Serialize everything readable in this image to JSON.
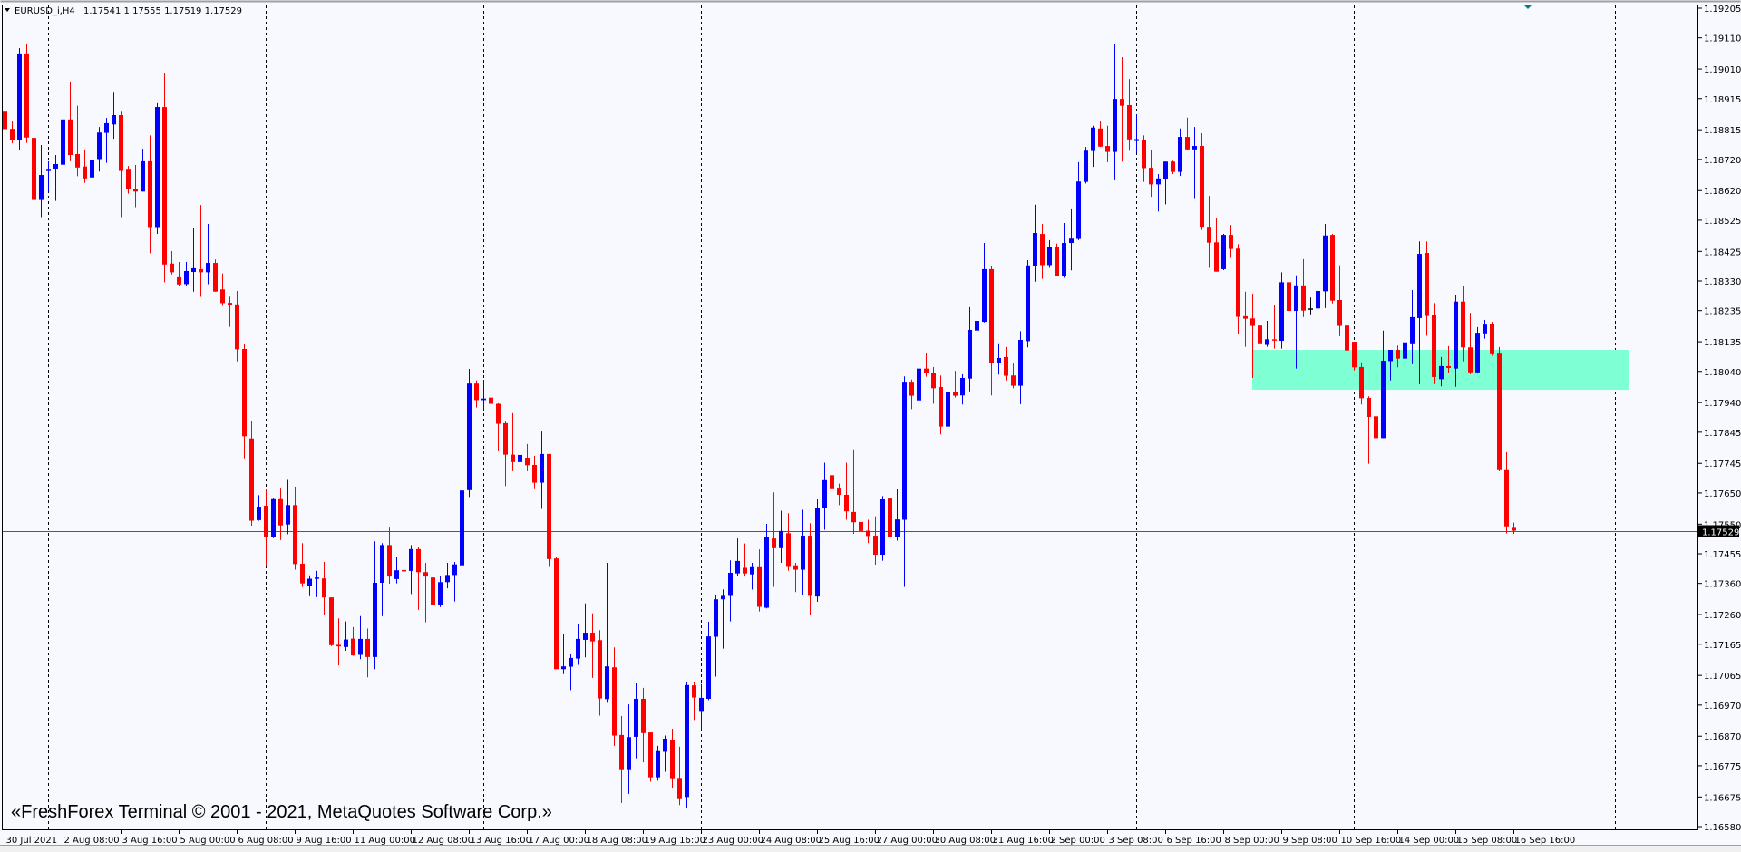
{
  "header": {
    "symbol_timeframe": "EURUSD_i,H4",
    "ohlc_text": "1.17541 1.17555 1.17519 1.17529"
  },
  "watermark": "«FreshForex Terminal © 2001 - 2021, MetaQuotes Software Corp.»",
  "colors": {
    "background": "#f8f8ff",
    "bull": "#0000ff",
    "bear": "#ff0000",
    "doji": "#000000",
    "current_price_line": "#008080",
    "zone": "#7fffd4",
    "separator": "#000000",
    "price_label_bg": "#000000",
    "price_label_text": "#ffffff"
  },
  "chart_data": {
    "type": "candlestick",
    "symbol": "EURUSD_i",
    "timeframe": "H4",
    "ylim": [
      1.1658,
      1.19205
    ],
    "current_price": "1.17529",
    "y_ticks": [
      "1.19205",
      "1.19110",
      "1.19010",
      "1.18915",
      "1.18815",
      "1.18720",
      "1.18620",
      "1.18525",
      "1.18425",
      "1.18330",
      "1.18235",
      "1.18135",
      "1.18040",
      "1.17940",
      "1.17845",
      "1.17745",
      "1.17650",
      "1.17550",
      "1.17455",
      "1.17360",
      "1.17260",
      "1.17165",
      "1.17065",
      "1.16970",
      "1.16870",
      "1.16775",
      "1.16675",
      "1.16580"
    ],
    "x_ticks": [
      "30 Jul 2021",
      "2 Aug 08:00",
      "3 Aug 16:00",
      "5 Aug 00:00",
      "6 Aug 08:00",
      "9 Aug 16:00",
      "11 Aug 00:00",
      "12 Aug 08:00",
      "13 Aug 16:00",
      "17 Aug 00:00",
      "18 Aug 08:00",
      "19 Aug 16:00",
      "23 Aug 00:00",
      "24 Aug 08:00",
      "25 Aug 16:00",
      "27 Aug 00:00",
      "30 Aug 08:00",
      "31 Aug 16:00",
      "2 Sep 00:00",
      "3 Sep 08:00",
      "6 Sep 16:00",
      "8 Sep 00:00",
      "9 Sep 08:00",
      "10 Sep 16:00",
      "14 Sep 00:00",
      "15 Sep 08:00",
      "16 Sep 16:00"
    ],
    "zone": {
      "price_high": 1.18109,
      "price_low": 1.17981
    },
    "ohlc_order": [
      "open",
      "high",
      "low",
      "close"
    ],
    "candles": [
      [
        1.18873,
        1.18944,
        1.18753,
        1.18817
      ],
      [
        1.18818,
        1.18844,
        1.18772,
        1.18782
      ],
      [
        1.18782,
        1.19077,
        1.18749,
        1.19057
      ],
      [
        1.19057,
        1.19089,
        1.18773,
        1.1879
      ],
      [
        1.18789,
        1.18865,
        1.18514,
        1.1859
      ],
      [
        1.1859,
        1.18766,
        1.18535,
        1.1867
      ],
      [
        1.18683,
        1.18714,
        1.18617,
        1.18687
      ],
      [
        1.18689,
        1.18734,
        1.18587,
        1.18705
      ],
      [
        1.18703,
        1.18885,
        1.18639,
        1.18848
      ],
      [
        1.18848,
        1.1897,
        1.18714,
        1.18734
      ],
      [
        1.18737,
        1.18892,
        1.18666,
        1.18694
      ],
      [
        1.18697,
        1.18752,
        1.18645,
        1.18659
      ],
      [
        1.18662,
        1.18786,
        1.18662,
        1.18719
      ],
      [
        1.18721,
        1.18824,
        1.18681,
        1.18806
      ],
      [
        1.18805,
        1.18853,
        1.18709,
        1.18836
      ],
      [
        1.18832,
        1.18934,
        1.18786,
        1.18862
      ],
      [
        1.18862,
        1.18873,
        1.18535,
        1.18683
      ],
      [
        1.18687,
        1.18699,
        1.1861,
        1.18625
      ],
      [
        1.18626,
        1.18702,
        1.18567,
        1.18617
      ],
      [
        1.18617,
        1.18754,
        1.18617,
        1.18714
      ],
      [
        1.18714,
        1.18797,
        1.18419,
        1.18503
      ],
      [
        1.18503,
        1.189,
        1.18481,
        1.18888
      ],
      [
        1.18888,
        1.18996,
        1.18326,
        1.18383
      ],
      [
        1.18386,
        1.18426,
        1.18351,
        1.18358
      ],
      [
        1.18342,
        1.18391,
        1.18314,
        1.18319
      ],
      [
        1.1832,
        1.18391,
        1.18314,
        1.18362
      ],
      [
        1.18359,
        1.18499,
        1.18296,
        1.18371
      ],
      [
        1.18368,
        1.18574,
        1.18279,
        1.18358
      ],
      [
        1.18358,
        1.18513,
        1.1832,
        1.18388
      ],
      [
        1.18388,
        1.18399,
        1.18296,
        1.18296
      ],
      [
        1.18303,
        1.18354,
        1.1825,
        1.18259
      ],
      [
        1.1826,
        1.1828,
        1.18183,
        1.18252
      ],
      [
        1.18255,
        1.18298,
        1.18072,
        1.18111
      ],
      [
        1.18112,
        1.18127,
        1.17761,
        1.17832
      ],
      [
        1.17825,
        1.17882,
        1.17545,
        1.17561
      ],
      [
        1.17563,
        1.17643,
        1.17561,
        1.17606
      ],
      [
        1.17609,
        1.17662,
        1.17415,
        1.17509
      ],
      [
        1.1751,
        1.17635,
        1.17505,
        1.17633
      ],
      [
        1.17633,
        1.17667,
        1.17499,
        1.17546
      ],
      [
        1.17549,
        1.17692,
        1.17518,
        1.17611
      ],
      [
        1.17611,
        1.1767,
        1.17404,
        1.17422
      ],
      [
        1.17423,
        1.17489,
        1.17348,
        1.1736
      ],
      [
        1.17352,
        1.17386,
        1.17319,
        1.17375
      ],
      [
        1.17375,
        1.174,
        1.17316,
        1.17379
      ],
      [
        1.17376,
        1.17429,
        1.17259,
        1.17315
      ],
      [
        1.17315,
        1.17315,
        1.17159,
        1.17162
      ],
      [
        1.17163,
        1.17248,
        1.17097,
        1.17158
      ],
      [
        1.17156,
        1.17238,
        1.17144,
        1.1718
      ],
      [
        1.17183,
        1.1722,
        1.17128,
        1.17129
      ],
      [
        1.17131,
        1.17255,
        1.17117,
        1.17182
      ],
      [
        1.17182,
        1.17215,
        1.17059,
        1.17124
      ],
      [
        1.17124,
        1.17495,
        1.17085,
        1.17362
      ],
      [
        1.17362,
        1.17489,
        1.17255,
        1.17483
      ],
      [
        1.17483,
        1.17542,
        1.17359,
        1.17382
      ],
      [
        1.17374,
        1.17446,
        1.1736,
        1.17402
      ],
      [
        1.17403,
        1.17459,
        1.17343,
        1.174
      ],
      [
        1.174,
        1.17483,
        1.17326,
        1.1747
      ],
      [
        1.1747,
        1.17477,
        1.17275,
        1.17396
      ],
      [
        1.17396,
        1.17426,
        1.17235,
        1.17382
      ],
      [
        1.17379,
        1.17426,
        1.17284,
        1.17291
      ],
      [
        1.17291,
        1.17384,
        1.17284,
        1.17364
      ],
      [
        1.17364,
        1.17426,
        1.17344,
        1.17387
      ],
      [
        1.17387,
        1.17429,
        1.17302,
        1.17421
      ],
      [
        1.17418,
        1.17692,
        1.17404,
        1.17658
      ],
      [
        1.17659,
        1.18048,
        1.17637,
        1.18001
      ],
      [
        1.18001,
        1.18011,
        1.17924,
        1.17948
      ],
      [
        1.17948,
        1.18013,
        1.17916,
        1.17953
      ],
      [
        1.17956,
        1.18007,
        1.17898,
        1.17936
      ],
      [
        1.17936,
        1.17938,
        1.17784,
        1.17872
      ],
      [
        1.17874,
        1.17879,
        1.17672,
        1.17773
      ],
      [
        1.17773,
        1.17906,
        1.1772,
        1.17749
      ],
      [
        1.17749,
        1.17795,
        1.17744,
        1.17772
      ],
      [
        1.17763,
        1.17807,
        1.1772,
        1.17739
      ],
      [
        1.1774,
        1.17769,
        1.17665,
        1.17683
      ],
      [
        1.17683,
        1.17847,
        1.17599,
        1.17775
      ],
      [
        1.17775,
        1.17775,
        1.17413,
        1.17438
      ],
      [
        1.1744,
        1.17446,
        1.17085,
        1.17085
      ],
      [
        1.17085,
        1.17197,
        1.17069,
        1.17094
      ],
      [
        1.17093,
        1.17133,
        1.17018,
        1.17121
      ],
      [
        1.17119,
        1.17231,
        1.17099,
        1.17182
      ],
      [
        1.17179,
        1.17296,
        1.17123,
        1.17202
      ],
      [
        1.17202,
        1.17264,
        1.17057,
        1.17174
      ],
      [
        1.17178,
        1.1721,
        1.16936,
        1.16991
      ],
      [
        1.16989,
        1.17426,
        1.16977,
        1.17094
      ],
      [
        1.17091,
        1.17155,
        1.16839,
        1.16872
      ],
      [
        1.16874,
        1.16935,
        1.16656,
        1.16764
      ],
      [
        1.16764,
        1.16972,
        1.16685,
        1.16867
      ],
      [
        1.16868,
        1.17042,
        1.16799,
        1.1699
      ],
      [
        1.1699,
        1.17025,
        1.16786,
        1.1688
      ],
      [
        1.16882,
        1.16882,
        1.16724,
        1.16738
      ],
      [
        1.16738,
        1.16839,
        1.16727,
        1.16822
      ],
      [
        1.1682,
        1.16872,
        1.16756,
        1.16862
      ],
      [
        1.16859,
        1.16894,
        1.16705,
        1.16735
      ],
      [
        1.16736,
        1.16836,
        1.16649,
        1.16671
      ],
      [
        1.16675,
        1.17045,
        1.16639,
        1.17034
      ],
      [
        1.17033,
        1.17045,
        1.16922,
        1.16994
      ],
      [
        1.16951,
        1.17037,
        1.1689,
        1.16993
      ],
      [
        1.1699,
        1.17237,
        1.16986,
        1.1719
      ],
      [
        1.17189,
        1.17322,
        1.17061,
        1.17309
      ],
      [
        1.17309,
        1.17341,
        1.17151,
        1.1732
      ],
      [
        1.1732,
        1.17434,
        1.17238,
        1.17394
      ],
      [
        1.17392,
        1.17504,
        1.17384,
        1.17432
      ],
      [
        1.1741,
        1.17488,
        1.17382,
        1.17392
      ],
      [
        1.17389,
        1.17426,
        1.1734,
        1.17412
      ],
      [
        1.17412,
        1.17469,
        1.1727,
        1.17285
      ],
      [
        1.17282,
        1.17551,
        1.1728,
        1.17508
      ],
      [
        1.17504,
        1.17652,
        1.17349,
        1.17473
      ],
      [
        1.17473,
        1.17593,
        1.17426,
        1.17528
      ],
      [
        1.17521,
        1.17585,
        1.17401,
        1.17413
      ],
      [
        1.17418,
        1.17426,
        1.17332,
        1.17404
      ],
      [
        1.17404,
        1.17596,
        1.17322,
        1.17513
      ],
      [
        1.17513,
        1.17553,
        1.17258,
        1.1732
      ],
      [
        1.17318,
        1.17632,
        1.17301,
        1.17601
      ],
      [
        1.17601,
        1.17747,
        1.17532,
        1.17691
      ],
      [
        1.17707,
        1.17737,
        1.17653,
        1.17665
      ],
      [
        1.17667,
        1.1768,
        1.17611,
        1.17644
      ],
      [
        1.17644,
        1.17747,
        1.17564,
        1.17591
      ],
      [
        1.17589,
        1.1779,
        1.17519,
        1.17556
      ],
      [
        1.17557,
        1.17677,
        1.1746,
        1.17528
      ],
      [
        1.17529,
        1.17564,
        1.17489,
        1.17512
      ],
      [
        1.17513,
        1.17575,
        1.1742,
        1.17452
      ],
      [
        1.17452,
        1.1764,
        1.17433,
        1.17632
      ],
      [
        1.17635,
        1.17713,
        1.17502,
        1.17508
      ],
      [
        1.17509,
        1.17663,
        1.17497,
        1.17565
      ],
      [
        1.17564,
        1.18024,
        1.17349,
        1.18004
      ],
      [
        1.18004,
        1.18014,
        1.17919,
        1.17962
      ],
      [
        1.17947,
        1.18065,
        1.17886,
        1.18049
      ],
      [
        1.18049,
        1.18098,
        1.18023,
        1.18035
      ],
      [
        1.18036,
        1.18054,
        1.17936,
        1.17986
      ],
      [
        1.1799,
        1.18027,
        1.17838,
        1.17863
      ],
      [
        1.17863,
        1.18036,
        1.17826,
        1.17975
      ],
      [
        1.17975,
        1.18042,
        1.17956,
        1.17962
      ],
      [
        1.17963,
        1.18031,
        1.17934,
        1.18019
      ],
      [
        1.18017,
        1.18246,
        1.17976,
        1.18173
      ],
      [
        1.18171,
        1.18317,
        1.18171,
        1.18202
      ],
      [
        1.18199,
        1.18452,
        1.18197,
        1.18368
      ],
      [
        1.18368,
        1.18378,
        1.17963,
        1.18066
      ],
      [
        1.18066,
        1.1813,
        1.1803,
        1.18083
      ],
      [
        1.18086,
        1.18118,
        1.18011,
        1.18026
      ],
      [
        1.18027,
        1.18065,
        1.17986,
        1.17994
      ],
      [
        1.17994,
        1.18169,
        1.17935,
        1.18141
      ],
      [
        1.18137,
        1.18397,
        1.18117,
        1.1838
      ],
      [
        1.18378,
        1.18575,
        1.18328,
        1.18484
      ],
      [
        1.18481,
        1.18513,
        1.18337,
        1.18381
      ],
      [
        1.18381,
        1.18461,
        1.18372,
        1.1844
      ],
      [
        1.1844,
        1.1845,
        1.18345,
        1.18346
      ],
      [
        1.18346,
        1.18516,
        1.1834,
        1.18452
      ],
      [
        1.18452,
        1.1856,
        1.18364,
        1.18466
      ],
      [
        1.18465,
        1.18711,
        1.18461,
        1.18649
      ],
      [
        1.18648,
        1.1876,
        1.18643,
        1.18748
      ],
      [
        1.18747,
        1.18828,
        1.18696,
        1.18822
      ],
      [
        1.18819,
        1.18843,
        1.1876,
        1.18761
      ],
      [
        1.18763,
        1.18828,
        1.18711,
        1.18744
      ],
      [
        1.18744,
        1.19089,
        1.18653,
        1.18914
      ],
      [
        1.18914,
        1.19048,
        1.18713,
        1.18892
      ],
      [
        1.18894,
        1.18978,
        1.18748,
        1.18784
      ],
      [
        1.18779,
        1.18864,
        1.18741,
        1.18785
      ],
      [
        1.18783,
        1.18797,
        1.18648,
        1.18692
      ],
      [
        1.18693,
        1.18751,
        1.186,
        1.1864
      ],
      [
        1.1864,
        1.18673,
        1.18553,
        1.18659
      ],
      [
        1.18657,
        1.18713,
        1.18576,
        1.18713
      ],
      [
        1.18713,
        1.18716,
        1.18673,
        1.1868
      ],
      [
        1.1868,
        1.18819,
        1.18667,
        1.18792
      ],
      [
        1.18792,
        1.18854,
        1.18749,
        1.18752
      ],
      [
        1.18752,
        1.18824,
        1.18593,
        1.18763
      ],
      [
        1.18763,
        1.18804,
        1.18494,
        1.18504
      ],
      [
        1.18504,
        1.18603,
        1.18372,
        1.18453
      ],
      [
        1.18454,
        1.18533,
        1.1836,
        1.1836
      ],
      [
        1.18368,
        1.18481,
        1.18365,
        1.18478
      ],
      [
        1.18478,
        1.1851,
        1.18404,
        1.18433
      ],
      [
        1.18434,
        1.18448,
        1.18159,
        1.18215
      ],
      [
        1.18217,
        1.18296,
        1.18119,
        1.18209
      ],
      [
        1.1821,
        1.18289,
        1.18019,
        1.18186
      ],
      [
        1.18187,
        1.18301,
        1.18107,
        1.1813
      ],
      [
        1.18125,
        1.18202,
        1.18119,
        1.18143
      ],
      [
        1.18143,
        1.18254,
        1.18113,
        1.18139
      ],
      [
        1.18138,
        1.18358,
        1.18113,
        1.18326
      ],
      [
        1.18326,
        1.18412,
        1.18081,
        1.18234
      ],
      [
        1.18234,
        1.18348,
        1.18049,
        1.18316
      ],
      [
        1.18316,
        1.184,
        1.18214,
        1.18235
      ],
      [
        1.18242,
        1.18277,
        1.18223,
        1.18242
      ],
      [
        1.18242,
        1.1833,
        1.18186,
        1.18298
      ],
      [
        1.18297,
        1.18513,
        1.18243,
        1.18476
      ],
      [
        1.18478,
        1.18481,
        1.18258,
        1.18267
      ],
      [
        1.18269,
        1.1838,
        1.18153,
        1.18186
      ],
      [
        1.18187,
        1.18187,
        1.18091,
        1.18107
      ],
      [
        1.18135,
        1.18135,
        1.18043,
        1.18053
      ],
      [
        1.18054,
        1.18069,
        1.17934,
        1.17954
      ],
      [
        1.17955,
        1.1796,
        1.17744,
        1.17894
      ],
      [
        1.17896,
        1.17932,
        1.177,
        1.17826
      ],
      [
        1.17826,
        1.18171,
        1.17826,
        1.18074
      ],
      [
        1.18073,
        1.18109,
        1.18011,
        1.18109
      ],
      [
        1.18109,
        1.18123,
        1.18053,
        1.18081
      ],
      [
        1.18081,
        1.18191,
        1.18059,
        1.18133
      ],
      [
        1.1813,
        1.18301,
        1.18063,
        1.18214
      ],
      [
        1.18211,
        1.18457,
        1.17999,
        1.18417
      ],
      [
        1.1842,
        1.18457,
        1.18154,
        1.18218
      ],
      [
        1.18222,
        1.18259,
        1.17999,
        1.18022
      ],
      [
        1.18015,
        1.18086,
        1.17992,
        1.18057
      ],
      [
        1.18057,
        1.18121,
        1.18034,
        1.18051
      ],
      [
        1.18049,
        1.18286,
        1.17991,
        1.18264
      ],
      [
        1.18264,
        1.18313,
        1.18072,
        1.18117
      ],
      [
        1.18117,
        1.18228,
        1.18031,
        1.18037
      ],
      [
        1.18037,
        1.18182,
        1.18033,
        1.18164
      ],
      [
        1.18162,
        1.18205,
        1.18145,
        1.1819
      ],
      [
        1.18193,
        1.18199,
        1.1809,
        1.18095
      ],
      [
        1.18097,
        1.18118,
        1.1772,
        1.17726
      ],
      [
        1.17726,
        1.17781,
        1.1752,
        1.17543
      ],
      [
        1.17541,
        1.17555,
        1.17519,
        1.17529
      ]
    ]
  }
}
